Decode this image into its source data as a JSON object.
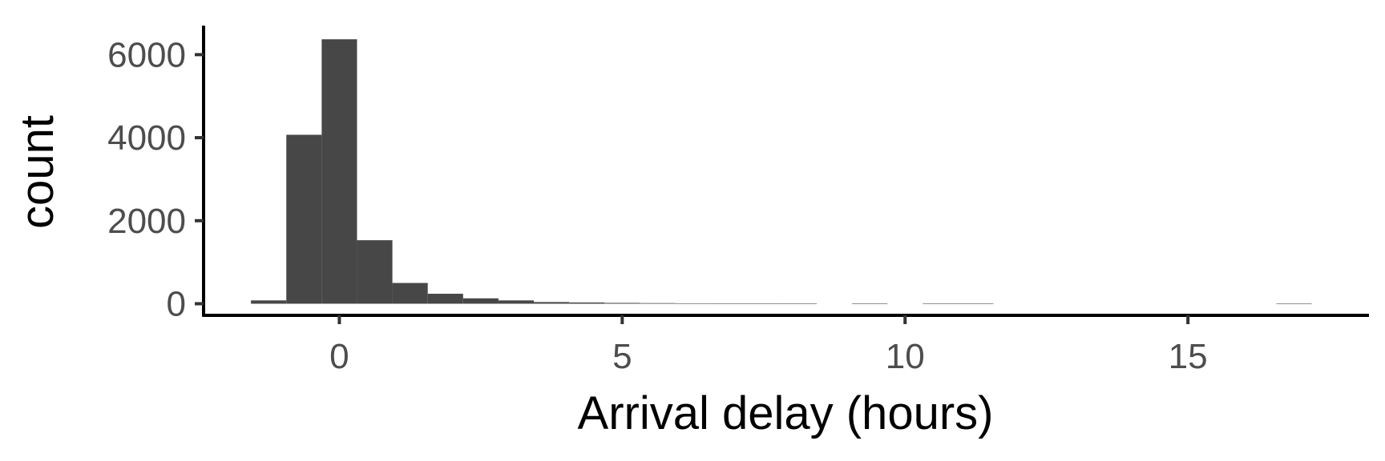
{
  "chart_data": {
    "type": "bar",
    "subtype": "histogram",
    "xlabel": "Arrival delay (hours)",
    "ylabel": "count",
    "bin_width": 0.625,
    "bins": [
      {
        "start": -1.5625,
        "end": -0.9375,
        "count": 80
      },
      {
        "start": -0.9375,
        "end": -0.3125,
        "count": 4070
      },
      {
        "start": -0.3125,
        "end": 0.3125,
        "count": 6370
      },
      {
        "start": 0.3125,
        "end": 0.9375,
        "count": 1530
      },
      {
        "start": 0.9375,
        "end": 1.5625,
        "count": 500
      },
      {
        "start": 1.5625,
        "end": 2.1875,
        "count": 240
      },
      {
        "start": 2.1875,
        "end": 2.8125,
        "count": 130
      },
      {
        "start": 2.8125,
        "end": 3.4375,
        "count": 80
      },
      {
        "start": 3.4375,
        "end": 4.0625,
        "count": 40
      },
      {
        "start": 4.0625,
        "end": 4.6875,
        "count": 30
      },
      {
        "start": 4.6875,
        "end": 5.3125,
        "count": 20
      },
      {
        "start": 5.3125,
        "end": 5.9375,
        "count": 15
      },
      {
        "start": 5.9375,
        "end": 6.5625,
        "count": 10
      },
      {
        "start": 6.5625,
        "end": 7.1875,
        "count": 8
      },
      {
        "start": 7.1875,
        "end": 7.8125,
        "count": 5
      },
      {
        "start": 7.8125,
        "end": 8.4375,
        "count": 2
      },
      {
        "start": 9.0625,
        "end": 9.6875,
        "count": 2
      },
      {
        "start": 10.3125,
        "end": 10.9375,
        "count": 2
      },
      {
        "start": 10.9375,
        "end": 11.5625,
        "count": 2
      },
      {
        "start": 16.5625,
        "end": 17.1875,
        "count": 1
      }
    ],
    "x_ticks": [
      0,
      5,
      10,
      15
    ],
    "y_ticks": [
      0,
      2000,
      4000,
      6000
    ],
    "xlim": [
      -2.4,
      18.2
    ],
    "ylim": [
      -280,
      6700
    ],
    "bar_color": "#474747",
    "axis_color": "#000000",
    "grid": false,
    "legend": "none"
  }
}
